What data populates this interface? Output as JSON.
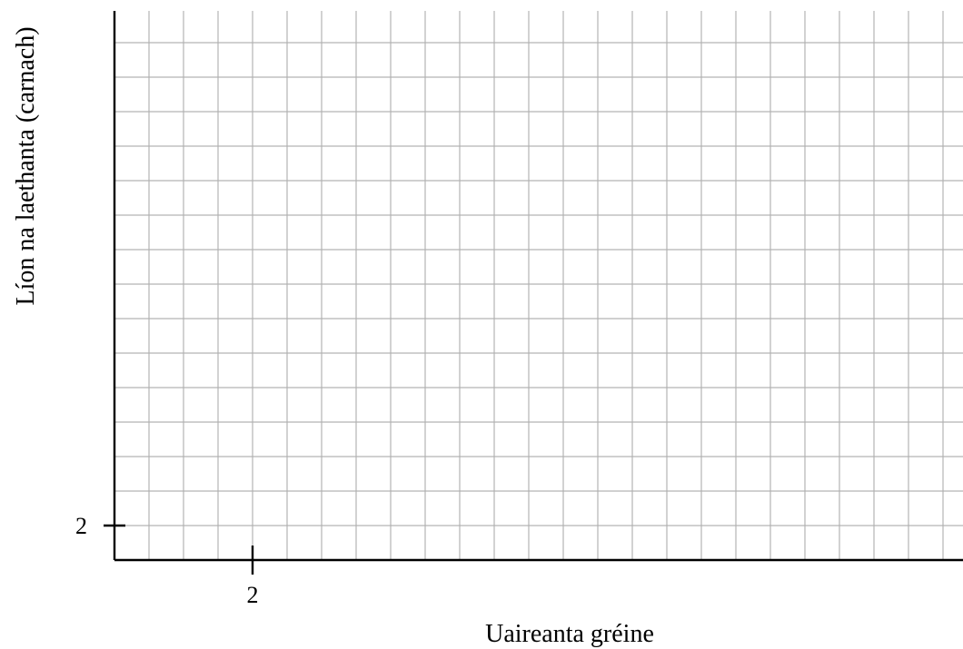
{
  "chart_data": {
    "type": "scatter",
    "title": "",
    "xlabel": "Uaireanta gréine",
    "ylabel": "Líon na laethanta (carnach)",
    "x_tick_labels": [
      {
        "value": 2,
        "label": "2"
      }
    ],
    "y_tick_labels": [
      {
        "value": 2,
        "label": "2"
      }
    ],
    "series": [],
    "grid": true,
    "colors": {
      "grid": "#b3b3b3",
      "axis": "#000000",
      "text": "#000000"
    }
  }
}
